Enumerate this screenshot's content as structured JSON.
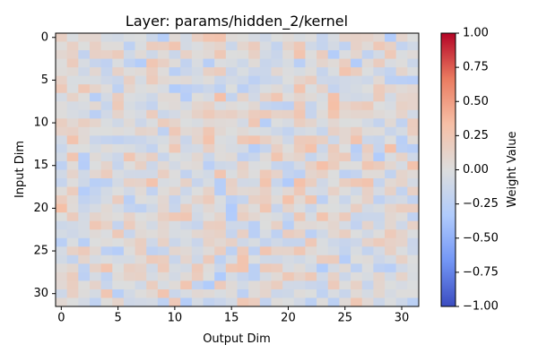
{
  "chart_data": {
    "type": "heatmap",
    "title": "Layer: params/hidden_2/kernel",
    "xlabel": "Output Dim",
    "ylabel": "Input Dim",
    "rows": 32,
    "cols": 32,
    "x_ticks": [
      "0",
      "5",
      "10",
      "15",
      "20",
      "25",
      "30"
    ],
    "y_ticks": [
      "0",
      "5",
      "10",
      "15",
      "20",
      "25",
      "30"
    ],
    "colorbar": {
      "label": "Weight Value",
      "min": -1.0,
      "max": 1.0,
      "ticks": [
        "−1.00",
        "−0.75",
        "−0.50",
        "−0.25",
        "0.00",
        "0.25",
        "0.50",
        "0.75",
        "1.00"
      ],
      "colormap": "coolwarm",
      "colors": [
        "#3b4cc0",
        "#7396f5",
        "#b0cbfc",
        "#dcdddd",
        "#f6bfa6",
        "#ea7b60",
        "#b40426"
      ]
    },
    "value_range_shown": [
      -0.35,
      0.35
    ],
    "grid": false
  }
}
